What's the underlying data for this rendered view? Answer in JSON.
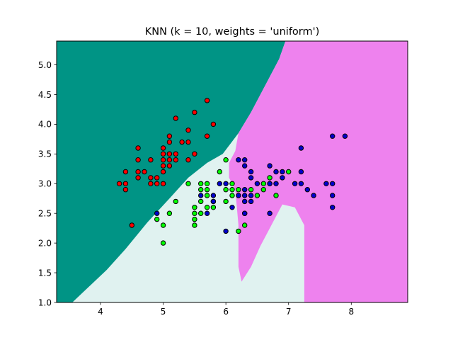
{
  "chart_data": {
    "type": "scatter",
    "title": "KNN (k = 10, weights = 'uniform')",
    "xlabel": "",
    "ylabel": "",
    "xlim": [
      3.3,
      8.9
    ],
    "ylim": [
      1.0,
      5.4
    ],
    "x_ticks": [
      "4",
      "5",
      "6",
      "7",
      "8"
    ],
    "x_tick_values": [
      4,
      5,
      6,
      7,
      8
    ],
    "y_ticks": [
      "1.0",
      "1.5",
      "2.0",
      "2.5",
      "3.0",
      "3.5",
      "4.0",
      "4.5",
      "5.0"
    ],
    "y_tick_values": [
      1.0,
      1.5,
      2.0,
      2.5,
      3.0,
      3.5,
      4.0,
      4.5,
      5.0
    ],
    "grid": false,
    "colors": {
      "region_class_0": "#009485",
      "region_class_1": "#e0f2f0",
      "region_class_2": "#ee82ee",
      "point_class_0": "#ff0000",
      "point_class_1": "#00ff00",
      "point_class_2": "#0000cc",
      "point_edge": "#000000"
    },
    "decision_regions": {
      "class_0_polygon": [
        [
          3.3,
          1.0
        ],
        [
          3.55,
          1.0
        ],
        [
          3.8,
          1.25
        ],
        [
          4.1,
          1.55
        ],
        [
          4.4,
          1.9
        ],
        [
          4.75,
          2.35
        ],
        [
          5.1,
          2.75
        ],
        [
          5.4,
          3.1
        ],
        [
          5.7,
          3.35
        ],
        [
          5.95,
          3.5
        ],
        [
          6.2,
          3.85
        ],
        [
          6.4,
          4.2
        ],
        [
          6.6,
          4.6
        ],
        [
          6.85,
          5.1
        ],
        [
          6.95,
          5.4
        ],
        [
          3.3,
          5.4
        ]
      ],
      "class_2_polygon": [
        [
          6.95,
          5.4
        ],
        [
          8.9,
          5.4
        ],
        [
          8.9,
          1.0
        ],
        [
          7.25,
          1.0
        ],
        [
          7.25,
          2.3
        ],
        [
          7.1,
          2.6
        ],
        [
          6.9,
          2.65
        ],
        [
          6.75,
          2.35
        ],
        [
          6.55,
          1.95
        ],
        [
          6.4,
          1.6
        ],
        [
          6.25,
          1.35
        ],
        [
          6.2,
          1.6
        ],
        [
          6.2,
          2.3
        ],
        [
          6.15,
          2.9
        ],
        [
          6.05,
          3.1
        ],
        [
          6.05,
          3.35
        ],
        [
          6.15,
          3.55
        ],
        [
          6.2,
          3.85
        ],
        [
          6.4,
          4.2
        ],
        [
          6.6,
          4.6
        ],
        [
          6.85,
          5.1
        ]
      ]
    },
    "series": [
      {
        "points": [
          [
            4.3,
            3.0
          ],
          [
            4.4,
            2.9
          ],
          [
            4.4,
            3.0
          ],
          [
            4.4,
            3.2
          ],
          [
            4.5,
            2.3
          ],
          [
            4.6,
            3.1
          ],
          [
            4.6,
            3.2
          ],
          [
            4.6,
            3.4
          ],
          [
            4.6,
            3.6
          ],
          [
            4.7,
            3.2
          ],
          [
            4.8,
            3.0
          ],
          [
            4.8,
            3.1
          ],
          [
            4.8,
            3.4
          ],
          [
            4.9,
            3.0
          ],
          [
            4.9,
            3.1
          ],
          [
            5.0,
            3.0
          ],
          [
            5.0,
            3.2
          ],
          [
            5.0,
            3.3
          ],
          [
            5.0,
            3.4
          ],
          [
            5.0,
            3.5
          ],
          [
            5.0,
            3.6
          ],
          [
            5.1,
            3.3
          ],
          [
            5.1,
            3.4
          ],
          [
            5.1,
            3.5
          ],
          [
            5.1,
            3.7
          ],
          [
            5.1,
            3.8
          ],
          [
            5.2,
            3.4
          ],
          [
            5.2,
            3.5
          ],
          [
            5.2,
            4.1
          ],
          [
            5.3,
            3.7
          ],
          [
            5.4,
            3.4
          ],
          [
            5.4,
            3.7
          ],
          [
            5.4,
            3.9
          ],
          [
            5.5,
            3.5
          ],
          [
            5.5,
            4.2
          ],
          [
            5.7,
            3.8
          ],
          [
            5.7,
            4.4
          ],
          [
            5.8,
            4.0
          ]
        ]
      },
      {
        "points": [
          [
            4.9,
            2.4
          ],
          [
            5.0,
            2.0
          ],
          [
            5.0,
            2.3
          ],
          [
            5.1,
            2.5
          ],
          [
            5.2,
            2.7
          ],
          [
            5.4,
            3.0
          ],
          [
            5.5,
            2.3
          ],
          [
            5.5,
            2.4
          ],
          [
            5.5,
            2.5
          ],
          [
            5.5,
            2.6
          ],
          [
            5.6,
            2.5
          ],
          [
            5.6,
            2.7
          ],
          [
            5.6,
            2.9
          ],
          [
            5.6,
            3.0
          ],
          [
            5.7,
            2.6
          ],
          [
            5.7,
            2.8
          ],
          [
            5.7,
            2.9
          ],
          [
            5.7,
            3.0
          ],
          [
            5.8,
            2.6
          ],
          [
            5.8,
            2.7
          ],
          [
            5.9,
            3.2
          ],
          [
            6.0,
            2.7
          ],
          [
            6.0,
            2.9
          ],
          [
            6.0,
            3.4
          ],
          [
            6.1,
            2.8
          ],
          [
            6.1,
            2.9
          ],
          [
            6.1,
            3.0
          ],
          [
            6.2,
            2.2
          ],
          [
            6.2,
            2.9
          ],
          [
            6.3,
            2.3
          ],
          [
            6.3,
            2.5
          ],
          [
            6.4,
            2.9
          ],
          [
            6.5,
            2.8
          ],
          [
            6.6,
            2.9
          ],
          [
            6.6,
            3.0
          ],
          [
            6.7,
            3.0
          ],
          [
            6.7,
            3.1
          ],
          [
            6.8,
            2.8
          ],
          [
            7.0,
            3.2
          ]
        ]
      },
      {
        "points": [
          [
            4.9,
            2.5
          ],
          [
            5.6,
            2.8
          ],
          [
            5.7,
            2.5
          ],
          [
            5.8,
            2.7
          ],
          [
            5.8,
            2.8
          ],
          [
            5.9,
            3.0
          ],
          [
            6.0,
            2.2
          ],
          [
            6.0,
            3.0
          ],
          [
            6.1,
            2.6
          ],
          [
            6.2,
            2.8
          ],
          [
            6.2,
            3.4
          ],
          [
            6.3,
            2.5
          ],
          [
            6.3,
            2.7
          ],
          [
            6.3,
            2.8
          ],
          [
            6.3,
            2.9
          ],
          [
            6.3,
            3.3
          ],
          [
            6.3,
            3.4
          ],
          [
            6.4,
            2.7
          ],
          [
            6.4,
            2.8
          ],
          [
            6.4,
            3.1
          ],
          [
            6.4,
            3.2
          ],
          [
            6.5,
            3.0
          ],
          [
            6.7,
            2.5
          ],
          [
            6.7,
            3.0
          ],
          [
            6.7,
            3.3
          ],
          [
            6.8,
            3.0
          ],
          [
            6.8,
            3.2
          ],
          [
            6.9,
            3.1
          ],
          [
            6.9,
            3.2
          ],
          [
            7.1,
            3.0
          ],
          [
            7.2,
            3.0
          ],
          [
            7.2,
            3.2
          ],
          [
            7.2,
            3.6
          ],
          [
            7.3,
            2.9
          ],
          [
            7.4,
            2.8
          ],
          [
            7.6,
            3.0
          ],
          [
            7.7,
            2.6
          ],
          [
            7.7,
            2.8
          ],
          [
            7.7,
            3.0
          ],
          [
            7.7,
            3.8
          ],
          [
            7.9,
            3.8
          ]
        ]
      }
    ]
  }
}
